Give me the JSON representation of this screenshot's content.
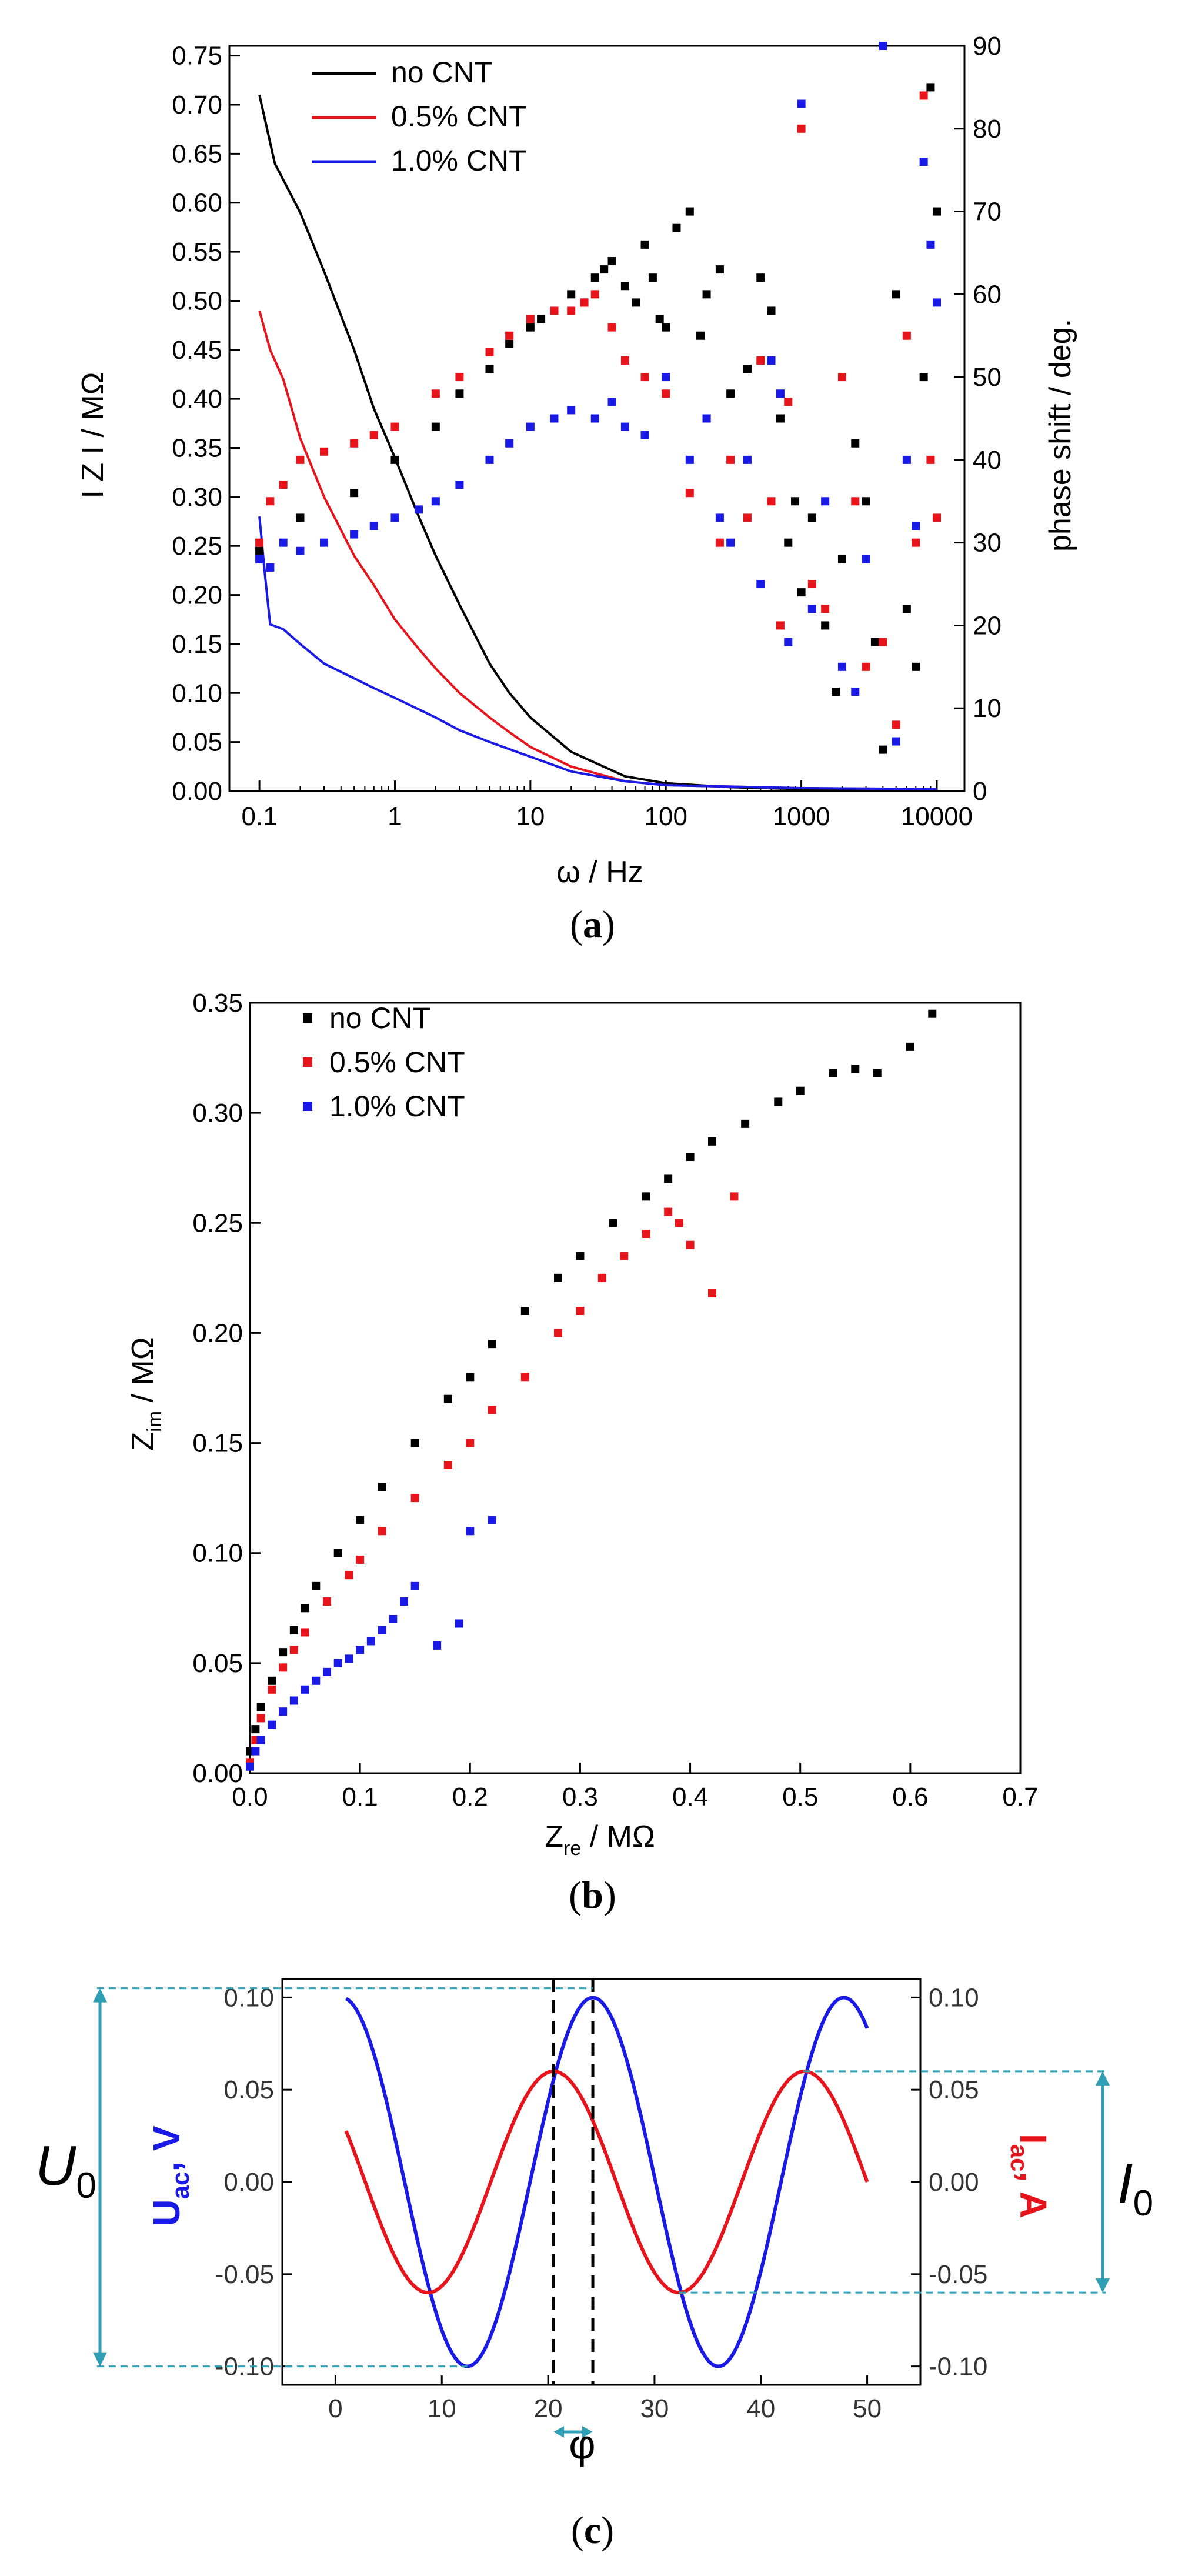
{
  "colors": {
    "black": "#000000",
    "red": "#e8141c",
    "blue": "#1a1ae6",
    "guide": "#2f9fb5"
  },
  "captions": {
    "a_open": "(",
    "a_letter": "a",
    "a_close": ")",
    "b_open": "(",
    "b_letter": "b",
    "b_close": ")",
    "c_open": "(",
    "c_letter": "c",
    "c_close": ")"
  },
  "chart_data": [
    {
      "type": "line",
      "panel": "a",
      "title": "",
      "xlabel": "ω / Hz",
      "ylabel": "I Z I / MΩ",
      "y2label": "phase shift / deg.",
      "xscale": "log",
      "xlim": [
        0.06,
        16000
      ],
      "ylim": [
        0,
        0.76
      ],
      "y2lim": [
        0,
        90
      ],
      "xticks": [
        "0.1",
        "1",
        "10",
        "100",
        "1000",
        "10000"
      ],
      "yticks": [
        "0.00",
        "0.05",
        "0.10",
        "0.15",
        "0.20",
        "0.25",
        "0.30",
        "0.35",
        "0.40",
        "0.45",
        "0.50",
        "0.55",
        "0.60",
        "0.65",
        "0.70",
        "0.75"
      ],
      "y2ticks": [
        "0",
        "10",
        "20",
        "30",
        "40",
        "50",
        "60",
        "70",
        "80",
        "90"
      ],
      "legend_position": "top-left",
      "series": [
        {
          "name": "no CNT",
          "color": "#000000",
          "kind": "line",
          "x": [
            0.1,
            0.13,
            0.2,
            0.3,
            0.5,
            0.7,
            1,
            1.5,
            2,
            3,
            5,
            7,
            10,
            20,
            50,
            100,
            300,
            1000,
            10000
          ],
          "y": [
            0.71,
            0.64,
            0.59,
            0.53,
            0.45,
            0.39,
            0.34,
            0.28,
            0.24,
            0.19,
            0.13,
            0.1,
            0.075,
            0.04,
            0.015,
            0.008,
            0.004,
            0.002,
            0.001
          ]
        },
        {
          "name": "0.5% CNT",
          "color": "#e8141c",
          "kind": "line",
          "x": [
            0.1,
            0.12,
            0.15,
            0.2,
            0.3,
            0.5,
            0.7,
            1,
            1.5,
            2,
            3,
            5,
            7,
            10,
            20,
            50,
            100,
            1000,
            10000
          ],
          "y": [
            0.49,
            0.45,
            0.42,
            0.36,
            0.3,
            0.24,
            0.21,
            0.175,
            0.145,
            0.125,
            0.1,
            0.075,
            0.06,
            0.045,
            0.025,
            0.01,
            0.006,
            0.003,
            0.002
          ]
        },
        {
          "name": "1.0% CNT",
          "color": "#1a1ae6",
          "kind": "line",
          "x": [
            0.1,
            0.11,
            0.12,
            0.15,
            0.2,
            0.3,
            0.5,
            0.7,
            1,
            2,
            3,
            5,
            10,
            20,
            50,
            100,
            1000,
            10000
          ],
          "y": [
            0.28,
            0.22,
            0.17,
            0.165,
            0.15,
            0.13,
            0.115,
            0.105,
            0.095,
            0.075,
            0.062,
            0.05,
            0.035,
            0.02,
            0.01,
            0.006,
            0.003,
            0.002
          ]
        },
        {
          "name": "no CNT",
          "color": "#000000",
          "kind": "scatter",
          "axis": "y2",
          "x": [
            0.1,
            0.2,
            0.5,
            1,
            2,
            3,
            5,
            7,
            10,
            12,
            15,
            20,
            25,
            30,
            35,
            40,
            50,
            60,
            70,
            80,
            90,
            100,
            120,
            150,
            180,
            200,
            250,
            300,
            400,
            500,
            600,
            700,
            800,
            900,
            1000,
            1200,
            1500,
            1800,
            2000,
            2500,
            3000,
            3500,
            4000,
            5000,
            6000,
            7000,
            8000,
            9000,
            10000
          ],
          "y": [
            29,
            33,
            36,
            40,
            44,
            48,
            51,
            54,
            56,
            57,
            58,
            60,
            59,
            62,
            63,
            64,
            61,
            59,
            66,
            62,
            57,
            56,
            68,
            70,
            55,
            60,
            63,
            48,
            51,
            62,
            58,
            45,
            30,
            35,
            24,
            33,
            20,
            12,
            28,
            42,
            35,
            18,
            5,
            60,
            22,
            15,
            50,
            85,
            70
          ]
        },
        {
          "name": "0.5% CNT",
          "color": "#e8141c",
          "kind": "scatter",
          "axis": "y2",
          "x": [
            0.1,
            0.12,
            0.15,
            0.2,
            0.3,
            0.5,
            0.7,
            1,
            2,
            3,
            5,
            7,
            10,
            15,
            20,
            25,
            30,
            40,
            50,
            70,
            100,
            150,
            200,
            250,
            300,
            400,
            500,
            600,
            700,
            800,
            1000,
            1200,
            1500,
            2000,
            2500,
            3000,
            4000,
            5000,
            6000,
            7000,
            8000,
            9000,
            10000
          ],
          "y": [
            30,
            35,
            37,
            40,
            41,
            42,
            43,
            44,
            48,
            50,
            53,
            55,
            57,
            58,
            58,
            59,
            60,
            56,
            52,
            50,
            48,
            36,
            45,
            30,
            40,
            33,
            52,
            35,
            20,
            47,
            80,
            25,
            22,
            50,
            35,
            15,
            18,
            8,
            55,
            30,
            84,
            40,
            33
          ]
        },
        {
          "name": "1.0% CNT",
          "color": "#1a1ae6",
          "kind": "scatter",
          "axis": "y2",
          "x": [
            0.1,
            0.12,
            0.15,
            0.2,
            0.3,
            0.5,
            0.7,
            1,
            1.5,
            2,
            3,
            5,
            7,
            10,
            15,
            20,
            30,
            40,
            50,
            70,
            100,
            150,
            200,
            250,
            300,
            400,
            500,
            600,
            700,
            800,
            1000,
            1200,
            1500,
            2000,
            2500,
            3000,
            4000,
            5000,
            6000,
            7000,
            8000,
            9000,
            10000
          ],
          "y": [
            28,
            27,
            30,
            29,
            30,
            31,
            32,
            33,
            34,
            35,
            37,
            40,
            42,
            44,
            45,
            46,
            45,
            47,
            44,
            43,
            50,
            40,
            45,
            33,
            30,
            40,
            25,
            52,
            48,
            18,
            83,
            22,
            35,
            15,
            12,
            28,
            90,
            6,
            40,
            32,
            76,
            66,
            59
          ]
        }
      ]
    },
    {
      "type": "scatter",
      "panel": "b",
      "title": "",
      "xlabel": "Z_re / MΩ",
      "ylabel": "Z_im / MΩ",
      "xlim": [
        0,
        0.7
      ],
      "ylim": [
        0,
        0.35
      ],
      "xticks": [
        "0.0",
        "0.1",
        "0.2",
        "0.3",
        "0.4",
        "0.5",
        "0.6",
        "0.7"
      ],
      "yticks": [
        "0.00",
        "0.05",
        "0.10",
        "0.15",
        "0.20",
        "0.25",
        "0.30",
        "0.35"
      ],
      "legend_position": "top-left",
      "series": [
        {
          "name": "no CNT",
          "color": "#000000",
          "x": [
            0.0,
            0.005,
            0.01,
            0.02,
            0.03,
            0.04,
            0.05,
            0.06,
            0.08,
            0.1,
            0.12,
            0.15,
            0.18,
            0.2,
            0.22,
            0.25,
            0.28,
            0.3,
            0.33,
            0.36,
            0.38,
            0.4,
            0.42,
            0.45,
            0.48,
            0.5,
            0.53,
            0.55,
            0.57,
            0.6,
            0.62
          ],
          "y": [
            0.01,
            0.02,
            0.03,
            0.042,
            0.055,
            0.065,
            0.075,
            0.085,
            0.1,
            0.115,
            0.13,
            0.15,
            0.17,
            0.18,
            0.195,
            0.21,
            0.225,
            0.235,
            0.25,
            0.262,
            0.27,
            0.28,
            0.287,
            0.295,
            0.305,
            0.31,
            0.318,
            0.32,
            0.318,
            0.33,
            0.345
          ]
        },
        {
          "name": "0.5% CNT",
          "color": "#e8141c",
          "x": [
            0.0,
            0.005,
            0.01,
            0.02,
            0.03,
            0.04,
            0.05,
            0.07,
            0.09,
            0.1,
            0.12,
            0.15,
            0.18,
            0.2,
            0.22,
            0.25,
            0.28,
            0.3,
            0.32,
            0.34,
            0.36,
            0.38,
            0.39,
            0.4,
            0.42,
            0.44
          ],
          "y": [
            0.005,
            0.015,
            0.025,
            0.038,
            0.048,
            0.056,
            0.064,
            0.078,
            0.09,
            0.097,
            0.11,
            0.125,
            0.14,
            0.15,
            0.165,
            0.18,
            0.2,
            0.21,
            0.225,
            0.235,
            0.245,
            0.255,
            0.25,
            0.24,
            0.218,
            0.262
          ]
        },
        {
          "name": "1.0% CNT",
          "color": "#1a1ae6",
          "x": [
            0.0,
            0.005,
            0.01,
            0.02,
            0.03,
            0.04,
            0.05,
            0.06,
            0.07,
            0.08,
            0.09,
            0.1,
            0.11,
            0.12,
            0.13,
            0.14,
            0.15,
            0.17,
            0.19,
            0.2,
            0.22
          ],
          "y": [
            0.003,
            0.01,
            0.015,
            0.022,
            0.028,
            0.033,
            0.038,
            0.042,
            0.046,
            0.05,
            0.052,
            0.056,
            0.06,
            0.065,
            0.07,
            0.078,
            0.085,
            0.058,
            0.068,
            0.11,
            0.115
          ]
        }
      ]
    },
    {
      "type": "line",
      "panel": "c",
      "title": "",
      "xlabel": "",
      "ylabel": "U_ac, V",
      "y2label": "I_ac, A",
      "xlim": [
        -5,
        55
      ],
      "ylim": [
        -0.11,
        0.11
      ],
      "xticks": [
        "0",
        "10",
        "20",
        "30",
        "40",
        "50"
      ],
      "yticks": [
        "-0.10",
        "-0.05",
        "0.00",
        "0.05",
        "0.10"
      ],
      "y2ticks": [
        "-0.10",
        "-0.05",
        "0.00",
        "0.05",
        "0.10"
      ],
      "series": [
        {
          "name": "",
          "color": "#1a1ae6",
          "kind": "sine",
          "amplitude": 0.1,
          "period": 23.6,
          "peak_x": 24.2,
          "x_range": [
            1,
            50
          ]
        },
        {
          "name": "",
          "color": "#e8141c",
          "kind": "sine",
          "amplitude": 0.06,
          "period": 23.6,
          "peak_x": 20.5,
          "x_range": [
            1,
            50
          ]
        }
      ],
      "annotations": {
        "U0": "U",
        "U0_sub": "0",
        "I0": "I",
        "I0_sub": "0",
        "phi": "φ",
        "phase_lines_x": [
          20.5,
          24.2
        ]
      }
    }
  ]
}
